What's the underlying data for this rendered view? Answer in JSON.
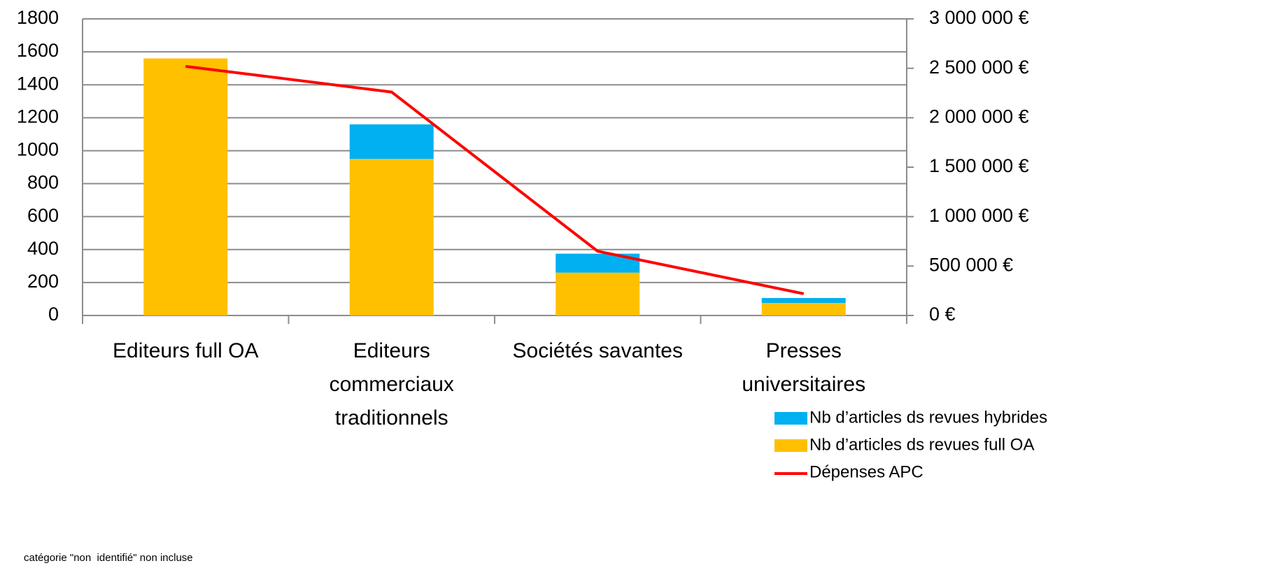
{
  "chart_data": {
    "type": "bar-line",
    "categories": [
      [
        "Editeurs full OA"
      ],
      [
        "Editeurs",
        "commerciaux",
        "traditionnels"
      ],
      [
        "Sociétés savantes"
      ],
      [
        "Presses",
        "universitaires"
      ]
    ],
    "series": [
      {
        "name": "Nb d’articles ds revues full OA",
        "color": "#ffc000",
        "type": "bar",
        "values": [
          1560,
          950,
          260,
          76
        ]
      },
      {
        "name": "Nb d’articles ds revues hybrides",
        "color": "#00b0f0",
        "type": "bar",
        "values": [
          0,
          210,
          115,
          30
        ]
      },
      {
        "name": "Dépenses APC",
        "color": "#ff0000",
        "type": "line",
        "axis": "y2",
        "values": [
          2520000,
          2260000,
          650000,
          220000
        ]
      }
    ],
    "stacked": true,
    "ylim": [
      0,
      1800
    ],
    "yticks": [
      0,
      200,
      400,
      600,
      800,
      1000,
      1200,
      1400,
      1600,
      1800
    ],
    "y2lim": [
      0,
      3000000
    ],
    "y2ticks": [
      {
        "value": 0,
        "label": "0 €"
      },
      {
        "value": 500000,
        "label": "500 000 €"
      },
      {
        "value": 1000000,
        "label": "1 000 000 €"
      },
      {
        "value": 1500000,
        "label": "1 500 000 €"
      },
      {
        "value": 2000000,
        "label": "2 000 000 €"
      },
      {
        "value": 2500000,
        "label": "2 500 000 €"
      },
      {
        "value": 3000000,
        "label": "3 000 000 €"
      }
    ],
    "grid": true,
    "note": "catégorie \"non  identifié\" non incluse"
  }
}
